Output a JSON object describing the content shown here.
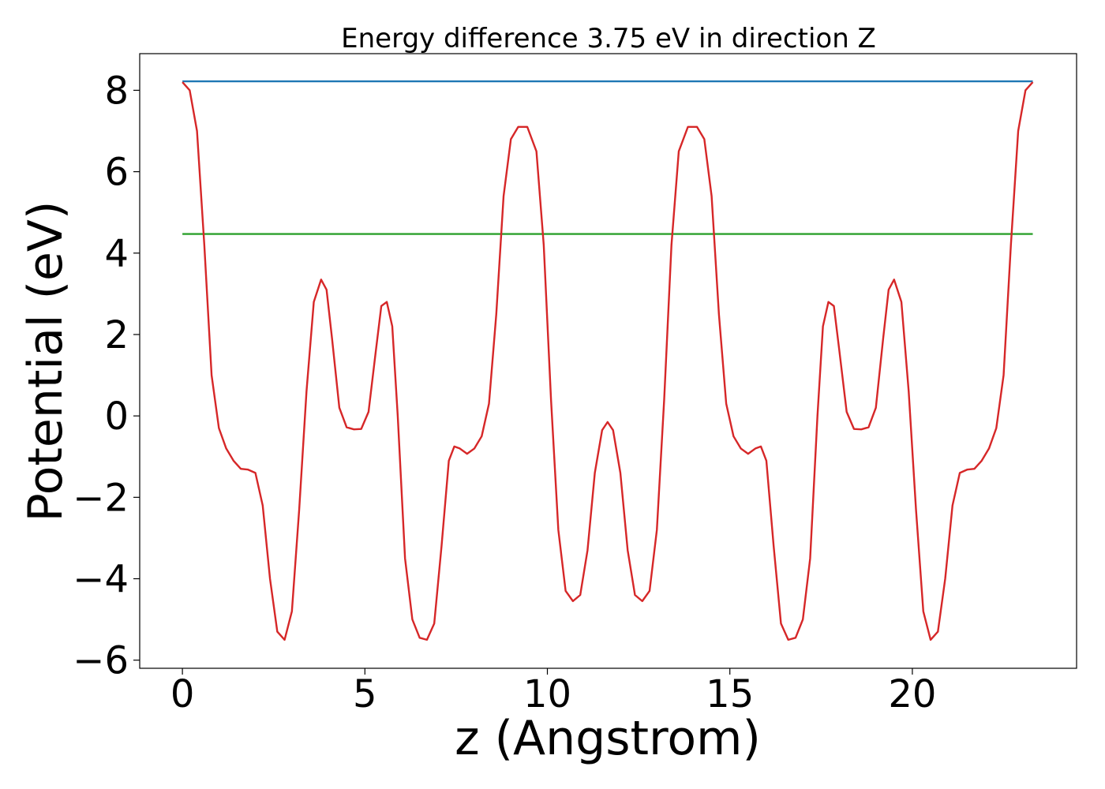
{
  "chart_data": {
    "type": "line",
    "title": "Energy difference 3.75 eV in direction Z",
    "xlabel": "z (Angstrom)",
    "ylabel": "Potential (eV)",
    "xlim": [
      -1.17,
      24.5
    ],
    "ylim": [
      -6.2,
      8.9
    ],
    "xticks": [
      0,
      5,
      10,
      15,
      20
    ],
    "xtick_labels": [
      "0",
      "5",
      "10",
      "15",
      "20"
    ],
    "yticks": [
      -6,
      -4,
      -2,
      0,
      2,
      4,
      6,
      8
    ],
    "ytick_labels": [
      "−6",
      "−4",
      "−2",
      "0",
      "2",
      "4",
      "6",
      "8"
    ],
    "grid": false,
    "series": [
      {
        "color": "#1f77b4",
        "x": [
          0,
          23.3
        ],
        "y": [
          8.22,
          8.22
        ]
      },
      {
        "color": "#2ca02c",
        "x": [
          0,
          23.3
        ],
        "y": [
          4.47,
          4.47
        ]
      },
      {
        "color": "#d62728",
        "x": [
          0,
          0.2,
          0.4,
          0.6,
          0.8,
          1.0,
          1.2,
          1.4,
          1.6,
          1.8,
          2.0,
          2.2,
          2.4,
          2.6,
          2.8,
          3.0,
          3.2,
          3.4,
          3.6,
          3.8,
          3.95,
          4.1,
          4.3,
          4.5,
          4.7,
          4.9,
          5.1,
          5.3,
          5.45,
          5.6,
          5.75,
          5.9,
          6.1,
          6.3,
          6.5,
          6.7,
          6.9,
          7.1,
          7.3,
          7.45,
          7.6,
          7.8,
          8.0,
          8.2,
          8.4,
          8.6,
          8.8,
          9.0,
          9.2,
          9.45,
          9.7,
          9.9,
          10.1,
          10.3,
          10.5,
          10.7,
          10.9,
          11.1,
          11.3,
          11.5,
          11.65,
          11.8,
          12.0,
          12.2,
          12.4,
          12.6,
          12.8,
          13.0,
          13.2,
          13.4,
          13.6,
          13.85,
          14.1,
          14.3,
          14.5,
          14.7,
          14.9,
          15.1,
          15.3,
          15.5,
          15.7,
          15.85,
          16.0,
          16.2,
          16.4,
          16.6,
          16.8,
          17.0,
          17.2,
          17.4,
          17.55,
          17.7,
          17.85,
          18.0,
          18.2,
          18.4,
          18.6,
          18.8,
          19.0,
          19.2,
          19.35,
          19.5,
          19.7,
          19.9,
          20.1,
          20.3,
          20.5,
          20.7,
          20.9,
          21.1,
          21.3,
          21.5,
          21.7,
          21.9,
          22.1,
          22.3,
          22.5,
          22.7,
          22.9,
          23.1,
          23.3
        ],
        "y": [
          8.2,
          8.0,
          7.0,
          4.2,
          1.0,
          -0.3,
          -0.8,
          -1.1,
          -1.3,
          -1.32,
          -1.4,
          -2.2,
          -4.0,
          -5.3,
          -5.5,
          -4.8,
          -2.3,
          0.6,
          2.8,
          3.35,
          3.1,
          1.9,
          0.2,
          -0.28,
          -0.33,
          -0.32,
          0.1,
          1.6,
          2.7,
          2.8,
          2.2,
          0.0,
          -3.5,
          -5.0,
          -5.45,
          -5.5,
          -5.1,
          -3.2,
          -1.1,
          -0.75,
          -0.8,
          -0.93,
          -0.8,
          -0.5,
          0.3,
          2.5,
          5.4,
          6.8,
          7.1,
          7.1,
          6.5,
          4.2,
          0.4,
          -2.8,
          -4.3,
          -4.55,
          -4.4,
          -3.3,
          -1.4,
          -0.35,
          -0.15,
          -0.35,
          -1.4,
          -3.3,
          -4.4,
          -4.55,
          -4.3,
          -2.8,
          0.4,
          4.2,
          6.5,
          7.1,
          7.1,
          6.8,
          5.4,
          2.5,
          0.3,
          -0.5,
          -0.8,
          -0.93,
          -0.8,
          -0.75,
          -1.1,
          -3.2,
          -5.1,
          -5.5,
          -5.45,
          -5.0,
          -3.5,
          0.0,
          2.2,
          2.8,
          2.7,
          1.6,
          0.1,
          -0.32,
          -0.33,
          -0.28,
          0.2,
          1.9,
          3.1,
          3.35,
          2.8,
          0.6,
          -2.3,
          -4.8,
          -5.5,
          -5.3,
          -4.0,
          -2.2,
          -1.4,
          -1.32,
          -1.3,
          -1.1,
          -0.8,
          -0.3,
          1.0,
          4.2,
          7.0,
          8.0,
          8.2
        ]
      }
    ]
  }
}
